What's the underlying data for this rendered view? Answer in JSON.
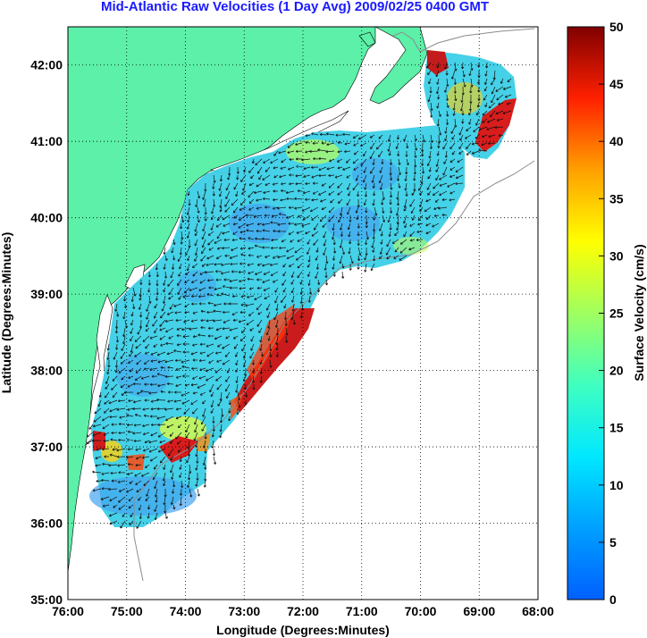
{
  "title": "Mid-Atlantic Raw Velocities (1 Day Avg) 2009/02/25 0400 GMT",
  "x_axis": {
    "label": "Longitude (Degrees:Minutes)",
    "ticks": [
      "76:00",
      "75:00",
      "74:00",
      "73:00",
      "72:00",
      "71:00",
      "70:00",
      "69:00",
      "68:00"
    ]
  },
  "y_axis": {
    "label": "Latitude (Degrees:Minutes)",
    "ticks": [
      "35:00",
      "36:00",
      "37:00",
      "38:00",
      "39:00",
      "40:00",
      "41:00",
      "42:00"
    ]
  },
  "colorbar": {
    "label": "Surface Velocity (cm/s)",
    "ticks": [
      "0",
      "5",
      "10",
      "15",
      "20",
      "25",
      "30",
      "35",
      "40",
      "45",
      "50"
    ],
    "range": [
      0,
      50
    ],
    "colormap": "jet"
  },
  "colors": {
    "land": "#5cf0a8",
    "title": "#1a1aff",
    "background_field": "#3ccfe6"
  },
  "map_extent": {
    "lon": [
      -76,
      -68
    ],
    "lat": [
      35,
      42.5
    ]
  }
}
